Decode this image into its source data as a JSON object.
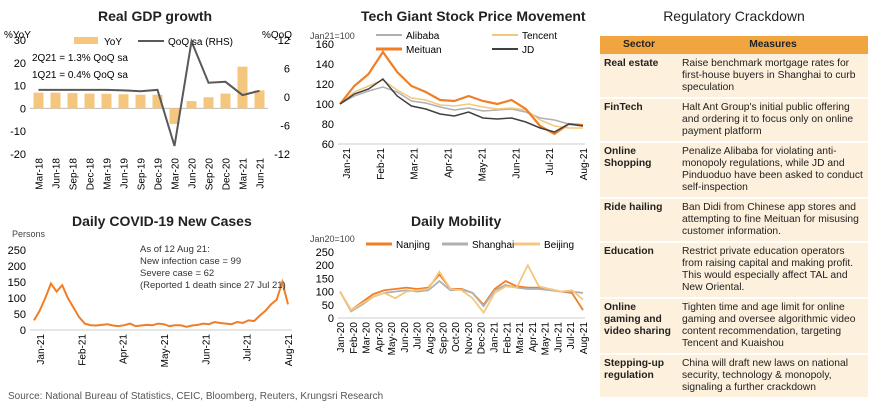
{
  "titles": {
    "gdp": "Real GDP growth",
    "stock": "Tech Giant Stock Price Movement",
    "covid": "Daily COVID-19 New Cases",
    "mobility": "Daily Mobility",
    "regulatory": "Regulatory Crackdown"
  },
  "source": "Source: National Bureau of Statistics, CEIC, Bloomberg, Reuters, Krungsri Research",
  "chart_data": [
    {
      "id": "gdp",
      "type": "bar",
      "title": "Real GDP growth",
      "ylabel_left": "%YoY",
      "ylabel_right": "%QoQ",
      "categories": [
        "Mar-18",
        "Jun-18",
        "Sep-18",
        "Dec-18",
        "Mar-19",
        "Jun-19",
        "Sep-19",
        "Dec-19",
        "Mar-20",
        "Jun-20",
        "Sep-20",
        "Dec-20",
        "Mar-21",
        "Jun-21"
      ],
      "x_tick_labels": [
        "Mar-18",
        "Jun-18",
        "Sep-18",
        "Dec-18",
        "Mar-19",
        "Jun-19",
        "Sep-19",
        "Dec-19",
        "Mar-20",
        "Jun-20",
        "Sep-20",
        "Dec-20",
        "Mar-21",
        "Jun-21"
      ],
      "ylim_left": [
        -20,
        30
      ],
      "yticks_left": [
        -20,
        -10,
        0,
        10,
        20,
        30
      ],
      "ylim_right": [
        -12,
        12
      ],
      "yticks_right": [
        -12,
        -6,
        0,
        6,
        12
      ],
      "series": [
        {
          "name": "YoY",
          "kind": "bar",
          "axis": "left",
          "color": "#f5c77e",
          "values": [
            6.9,
            6.9,
            6.7,
            6.5,
            6.4,
            6.2,
            6.0,
            6.0,
            -6.8,
            3.2,
            4.9,
            6.5,
            18.3,
            7.9
          ]
        },
        {
          "name": "QoQ sa (RHS)",
          "kind": "line",
          "axis": "right",
          "color": "#595959",
          "values": [
            1.5,
            1.5,
            1.5,
            1.5,
            1.5,
            1.4,
            1.2,
            1.5,
            -10.3,
            11.7,
            3.0,
            3.2,
            0.4,
            1.3
          ]
        }
      ],
      "annotations": [
        "2Q21 = 1.3% QoQ sa",
        "1Q21 = 0.4% QoQ sa"
      ],
      "legend": "top"
    },
    {
      "id": "stock",
      "type": "line",
      "title": "Tech Giant Stock Price Movement",
      "ylabel": "Jan21=100",
      "x_tick_labels": [
        "Jan-21",
        "Feb-21",
        "Mar-21",
        "Apr-21",
        "May-21",
        "Jun-21",
        "Jul-21",
        "Aug-21"
      ],
      "ylim": [
        60,
        160
      ],
      "yticks": [
        60,
        80,
        100,
        120,
        140,
        160
      ],
      "series": [
        {
          "name": "Alibaba",
          "color": "#b0b0b0",
          "values": [
            100,
            108,
            113,
            117,
            112,
            103,
            101,
            97,
            94,
            96,
            93,
            94,
            95,
            92,
            86,
            84,
            80,
            79
          ]
        },
        {
          "name": "Tencent",
          "color": "#f5c77e",
          "values": [
            100,
            112,
            118,
            124,
            114,
            106,
            104,
            99,
            98,
            100,
            97,
            95,
            96,
            94,
            84,
            78,
            76,
            76
          ]
        },
        {
          "name": "Meituan",
          "color": "#f07e26",
          "values": [
            100,
            118,
            130,
            152,
            132,
            118,
            112,
            104,
            103,
            108,
            103,
            100,
            104,
            95,
            78,
            70,
            80,
            79
          ]
        },
        {
          "name": "JD",
          "color": "#404040",
          "values": [
            100,
            110,
            115,
            125,
            108,
            98,
            95,
            90,
            88,
            92,
            86,
            85,
            86,
            82,
            76,
            72,
            80,
            78
          ]
        }
      ],
      "legend": "top"
    },
    {
      "id": "covid",
      "type": "line",
      "title": "Daily COVID-19 New Cases",
      "ylabel": "Persons",
      "x_tick_labels": [
        "Jan-21",
        "Feb-21",
        "Apr-21",
        "May-21",
        "Jun-21",
        "Jul-21",
        "Aug-21"
      ],
      "ylim": [
        0,
        250
      ],
      "yticks": [
        0,
        50,
        100,
        150,
        200,
        250
      ],
      "series": [
        {
          "name": "New cases",
          "color": "#f07e26",
          "values": [
            30,
            60,
            100,
            145,
            120,
            140,
            100,
            70,
            40,
            20,
            15,
            14,
            16,
            18,
            14,
            12,
            15,
            20,
            12,
            14,
            16,
            15,
            20,
            18,
            12,
            15,
            15,
            10,
            14,
            16,
            20,
            18,
            25,
            22,
            20,
            18,
            25,
            22,
            30,
            28,
            45,
            60,
            80,
            95,
            150,
            80
          ]
        }
      ],
      "annotations": [
        "As of 12 Aug 21:",
        "New infection case = 99",
        "Severe case = 62",
        "(Reported 1 death since 27 Jul 21)"
      ]
    },
    {
      "id": "mobility",
      "type": "line",
      "title": "Daily Mobility",
      "ylabel": "Jan20=100",
      "x_tick_labels": [
        "Jan-20",
        "Feb-20",
        "Mar-20",
        "Apr-20",
        "May-20",
        "Jun-20",
        "Jul-20",
        "Aug-20",
        "Sep-20",
        "Oct-20",
        "Nov-20",
        "Dec-20",
        "Jan-21",
        "Feb-21",
        "Mar-21",
        "Apr-21",
        "May-21",
        "Jun-21",
        "Jul-21",
        "Aug-21"
      ],
      "ylim": [
        0,
        250
      ],
      "yticks": [
        0,
        50,
        100,
        150,
        200,
        250
      ],
      "series": [
        {
          "name": "Nanjing",
          "color": "#f07e26",
          "values": [
            100,
            30,
            60,
            90,
            105,
            110,
            115,
            110,
            115,
            165,
            110,
            110,
            95,
            50,
            110,
            140,
            120,
            115,
            115,
            110,
            100,
            95,
            30
          ]
        },
        {
          "name": "Shanghai",
          "color": "#b0b0b0",
          "values": [
            100,
            25,
            50,
            80,
            95,
            100,
            105,
            100,
            105,
            140,
            105,
            108,
            95,
            45,
            105,
            125,
            115,
            110,
            110,
            105,
            100,
            100,
            95
          ]
        },
        {
          "name": "Beijing",
          "color": "#f5c77e",
          "values": [
            100,
            30,
            55,
            80,
            95,
            75,
            100,
            105,
            110,
            175,
            110,
            105,
            75,
            20,
            95,
            120,
            115,
            200,
            120,
            110,
            100,
            105,
            70
          ]
        }
      ],
      "legend": "top"
    }
  ],
  "regulatory": {
    "headers": [
      "Sector",
      "Measures"
    ],
    "rows": [
      {
        "sector": "Real estate",
        "measures": "Raise benchmark mortgage rates for first-house buyers in Shanghai to curb speculation"
      },
      {
        "sector": "FinTech",
        "measures": "Halt Ant Group's initial public offering and ordering it to focus only on online payment platform"
      },
      {
        "sector": "Online Shopping",
        "measures": "Penalize Alibaba for violating anti-monopoly regulations, while JD and Pinduoduo have been asked to conduct self-inspection"
      },
      {
        "sector": "Ride hailing",
        "measures": "Ban Didi from Chinese app stores and attempting to fine Meituan for misusing customer information."
      },
      {
        "sector": "Education",
        "measures": "Restrict private education operators from raising capital and making profit. This would especially affect TAL and New Oriental."
      },
      {
        "sector": "Online gaming and video sharing",
        "measures": "Tighten time and age limit for online gaming and oversee algorithmic video content recommendation, targeting Tencent and Kuaishou"
      },
      {
        "sector": "Stepping-up regulation",
        "measures": "China will draft new laws on national security, technology & monopoly, signaling a further crackdown"
      }
    ]
  }
}
